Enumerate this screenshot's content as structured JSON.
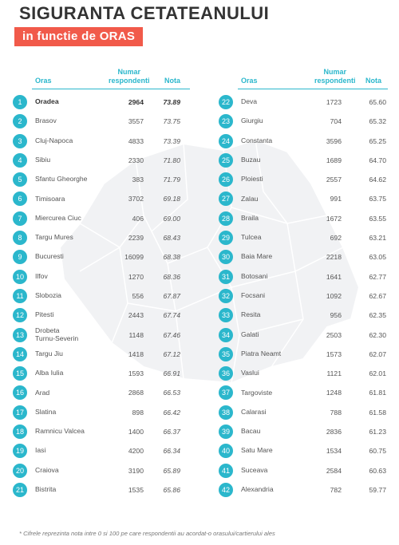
{
  "title": "SIGURANTA CETATEANULUI",
  "subtitle": "in functie de ORAS",
  "columns": {
    "oras": "Oras",
    "numar": "Numar",
    "respondenti": "respondenti",
    "nota": "Nota"
  },
  "colors": {
    "accent": "#2bb7cc",
    "highlight": "#f15a4a",
    "map": "#f1f2f4"
  },
  "left_rows": [
    {
      "rank": "1",
      "city": "Oradea",
      "resp": "2964",
      "nota": "73.89"
    },
    {
      "rank": "2",
      "city": "Brasov",
      "resp": "3557",
      "nota": "73.75"
    },
    {
      "rank": "3",
      "city": "Cluj-Napoca",
      "resp": "4833",
      "nota": "73.39"
    },
    {
      "rank": "4",
      "city": "Sibiu",
      "resp": "2330",
      "nota": "71.80"
    },
    {
      "rank": "5",
      "city": "Sfantu Gheorghe",
      "resp": "383",
      "nota": "71.79"
    },
    {
      "rank": "6",
      "city": "Timisoara",
      "resp": "3702",
      "nota": "69.18"
    },
    {
      "rank": "7",
      "city": "Miercurea Ciuc",
      "resp": "406",
      "nota": "69.00"
    },
    {
      "rank": "8",
      "city": "Targu Mures",
      "resp": "2239",
      "nota": "68.43"
    },
    {
      "rank": "9",
      "city": "Bucuresti",
      "resp": "16099",
      "nota": "68.38"
    },
    {
      "rank": "10",
      "city": "Ilfov",
      "resp": "1270",
      "nota": "68.36"
    },
    {
      "rank": "11",
      "city": "Slobozia",
      "resp": "556",
      "nota": "67.87"
    },
    {
      "rank": "12",
      "city": "Pitesti",
      "resp": "2443",
      "nota": "67.74"
    },
    {
      "rank": "13",
      "city": "Drobeta\nTurnu-Severin",
      "resp": "1148",
      "nota": "67.46"
    },
    {
      "rank": "14",
      "city": "Targu Jiu",
      "resp": "1418",
      "nota": "67.12"
    },
    {
      "rank": "15",
      "city": "Alba Iulia",
      "resp": "1593",
      "nota": "66.91"
    },
    {
      "rank": "16",
      "city": "Arad",
      "resp": "2868",
      "nota": "66.53"
    },
    {
      "rank": "17",
      "city": "Slatina",
      "resp": "898",
      "nota": "66.42"
    },
    {
      "rank": "18",
      "city": "Ramnicu Valcea",
      "resp": "1400",
      "nota": "66.37"
    },
    {
      "rank": "19",
      "city": "Iasi",
      "resp": "4200",
      "nota": "66.34"
    },
    {
      "rank": "20",
      "city": "Craiova",
      "resp": "3190",
      "nota": "65.89"
    },
    {
      "rank": "21",
      "city": "Bistrita",
      "resp": "1535",
      "nota": "65.86"
    }
  ],
  "right_rows": [
    {
      "rank": "22",
      "city": "Deva",
      "resp": "1723",
      "nota": "65.60"
    },
    {
      "rank": "23",
      "city": "Giurgiu",
      "resp": "704",
      "nota": "65.32"
    },
    {
      "rank": "24",
      "city": "Constanta",
      "resp": "3596",
      "nota": "65.25"
    },
    {
      "rank": "25",
      "city": "Buzau",
      "resp": "1689",
      "nota": "64.70"
    },
    {
      "rank": "26",
      "city": "Ploiesti",
      "resp": "2557",
      "nota": "64.62"
    },
    {
      "rank": "27",
      "city": "Zalau",
      "resp": "991",
      "nota": "63.75"
    },
    {
      "rank": "28",
      "city": "Braila",
      "resp": "1672",
      "nota": "63.55"
    },
    {
      "rank": "29",
      "city": "Tulcea",
      "resp": "692",
      "nota": "63.21"
    },
    {
      "rank": "30",
      "city": "Baia Mare",
      "resp": "2218",
      "nota": "63.05"
    },
    {
      "rank": "31",
      "city": "Botosani",
      "resp": "1641",
      "nota": "62.77"
    },
    {
      "rank": "32",
      "city": "Focsani",
      "resp": "1092",
      "nota": "62.67"
    },
    {
      "rank": "33",
      "city": "Resita",
      "resp": "956",
      "nota": "62.35"
    },
    {
      "rank": "34",
      "city": "Galati",
      "resp": "2503",
      "nota": "62.30"
    },
    {
      "rank": "35",
      "city": "Piatra Neamt",
      "resp": "1573",
      "nota": "62.07"
    },
    {
      "rank": "36",
      "city": "Vaslui",
      "resp": "1121",
      "nota": "62.01"
    },
    {
      "rank": "37",
      "city": "Targoviste",
      "resp": "1248",
      "nota": "61.81"
    },
    {
      "rank": "38",
      "city": "Calarasi",
      "resp": "788",
      "nota": "61.58"
    },
    {
      "rank": "39",
      "city": "Bacau",
      "resp": "2836",
      "nota": "61.23"
    },
    {
      "rank": "40",
      "city": "Satu Mare",
      "resp": "1534",
      "nota": "60.75"
    },
    {
      "rank": "41",
      "city": "Suceava",
      "resp": "2584",
      "nota": "60.63"
    },
    {
      "rank": "42",
      "city": "Alexandria",
      "resp": "782",
      "nota": "59.77"
    }
  ],
  "footnote": "* Cifrele reprezinta nota intre 0 si 100 pe care respondentii au acordat-o orasului/cartierului ales"
}
